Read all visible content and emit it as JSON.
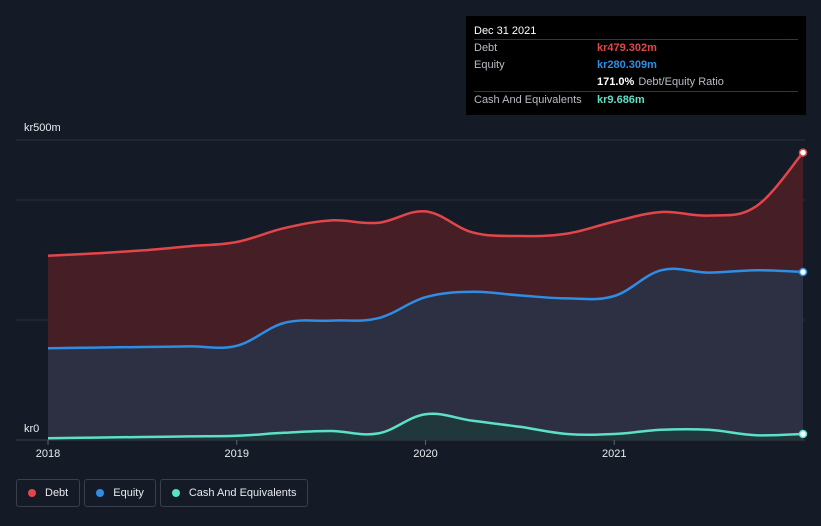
{
  "chart_data": {
    "type": "area",
    "y_unit_label_top": "kr500m",
    "y_unit_label_bottom": "kr0",
    "ylim": [
      0,
      500
    ],
    "xlim": [
      2018.0,
      2022.0
    ],
    "x_ticks": [
      {
        "label": "2018",
        "value": 2018.0
      },
      {
        "label": "2019",
        "value": 2019.0
      },
      {
        "label": "2020",
        "value": 2020.0
      },
      {
        "label": "2021",
        "value": 2021.0
      }
    ],
    "grid": true,
    "legend_position": "bottom-left",
    "series": [
      {
        "name": "Debt",
        "color": "#e2464b",
        "fill": "#4a1f27",
        "x": [
          2018.0,
          2018.25,
          2018.5,
          2018.75,
          2019.0,
          2019.25,
          2019.5,
          2019.75,
          2020.0,
          2020.25,
          2020.5,
          2020.75,
          2021.0,
          2021.25,
          2021.5,
          2021.75,
          2022.0
        ],
        "y": [
          307,
          311,
          316,
          323,
          330,
          353,
          366,
          362,
          381,
          346,
          340,
          344,
          364,
          380,
          374,
          389,
          479
        ]
      },
      {
        "name": "Equity",
        "color": "#2d8ee3",
        "fill": "#2a3146",
        "x": [
          2018.0,
          2018.25,
          2018.5,
          2018.75,
          2019.0,
          2019.25,
          2019.5,
          2019.75,
          2020.0,
          2020.25,
          2020.5,
          2020.75,
          2021.0,
          2021.25,
          2021.5,
          2021.75,
          2022.0
        ],
        "y": [
          153,
          154,
          155,
          156,
          157,
          195,
          199,
          203,
          238,
          247,
          241,
          236,
          240,
          283,
          279,
          283,
          280
        ]
      },
      {
        "name": "Cash And Equivalents",
        "color": "#5ce0c6",
        "fill": "#1f3a3c",
        "x": [
          2018.0,
          2018.25,
          2018.5,
          2018.75,
          2019.0,
          2019.25,
          2019.5,
          2019.75,
          2020.0,
          2020.25,
          2020.5,
          2020.75,
          2021.0,
          2021.25,
          2021.5,
          2021.75,
          2022.0
        ],
        "y": [
          3,
          4,
          5,
          6,
          7,
          12,
          15,
          11,
          43,
          32,
          22,
          10,
          10,
          17,
          17,
          8,
          10
        ]
      }
    ]
  },
  "tooltip": {
    "date": "Dec 31 2021",
    "rows": [
      {
        "label": "Debt",
        "value": "kr479.302m",
        "color": "#e2464b"
      },
      {
        "label": "Equity",
        "value": "kr280.309m",
        "color": "#2d8ee3"
      },
      {
        "label": "",
        "value": "171.0%",
        "color": "#ffffff",
        "suffix": "Debt/Equity Ratio"
      },
      {
        "label": "Cash And Equivalents",
        "value": "kr9.686m",
        "color": "#5ce0c6"
      }
    ]
  },
  "legend": [
    {
      "label": "Debt",
      "color": "#e2464b"
    },
    {
      "label": "Equity",
      "color": "#2d8ee3"
    },
    {
      "label": "Cash And Equivalents",
      "color": "#5ce0c6"
    }
  ]
}
